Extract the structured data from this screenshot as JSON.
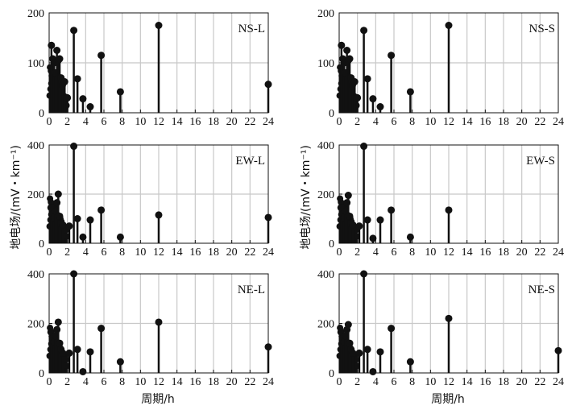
{
  "chart_data": {
    "type": "scatter",
    "style": "stem",
    "xlabel": "周期/h",
    "ylabel": "地电场/(mV・km⁻¹)",
    "xticks": [
      0,
      2,
      4,
      6,
      8,
      10,
      12,
      14,
      16,
      18,
      20,
      22,
      24
    ],
    "xlim": [
      0,
      24
    ],
    "grid": true,
    "panels": [
      {
        "title": "NS-L",
        "ylim": [
          0,
          200
        ],
        "yticks": [
          0,
          100,
          200
        ],
        "points": [
          [
            0.25,
            135
          ],
          [
            0.4,
            108
          ],
          [
            0.55,
            100
          ],
          [
            0.7,
            80
          ],
          [
            0.85,
            125
          ],
          [
            1.0,
            105
          ],
          [
            1.15,
            108
          ],
          [
            1.3,
            70
          ],
          [
            1.45,
            55
          ],
          [
            1.7,
            62
          ],
          [
            2.0,
            30
          ],
          [
            2.7,
            165
          ],
          [
            3.1,
            68
          ],
          [
            3.7,
            28
          ],
          [
            4.5,
            12
          ],
          [
            5.7,
            115
          ],
          [
            7.8,
            42
          ],
          [
            12.0,
            175
          ],
          [
            24.0,
            57
          ]
        ]
      },
      {
        "title": "NS-S",
        "ylim": [
          0,
          200
        ],
        "yticks": [
          0,
          100,
          200
        ],
        "points": [
          [
            0.25,
            135
          ],
          [
            0.4,
            108
          ],
          [
            0.55,
            100
          ],
          [
            0.7,
            80
          ],
          [
            0.85,
            125
          ],
          [
            1.0,
            105
          ],
          [
            1.15,
            108
          ],
          [
            1.3,
            70
          ],
          [
            1.45,
            55
          ],
          [
            1.7,
            62
          ],
          [
            2.0,
            30
          ],
          [
            2.7,
            165
          ],
          [
            3.1,
            68
          ],
          [
            3.7,
            28
          ],
          [
            4.5,
            12
          ],
          [
            5.7,
            115
          ],
          [
            7.8,
            42
          ],
          [
            12.0,
            175
          ]
        ]
      },
      {
        "title": "EW-L",
        "ylim": [
          0,
          400
        ],
        "yticks": [
          0,
          200,
          400
        ],
        "points": [
          [
            0.2,
            145
          ],
          [
            0.4,
            120
          ],
          [
            0.55,
            105
          ],
          [
            0.7,
            130
          ],
          [
            0.85,
            165
          ],
          [
            1.0,
            200
          ],
          [
            1.15,
            110
          ],
          [
            1.3,
            80
          ],
          [
            1.5,
            75
          ],
          [
            2.2,
            70
          ],
          [
            2.7,
            395
          ],
          [
            3.1,
            100
          ],
          [
            3.7,
            25
          ],
          [
            4.5,
            95
          ],
          [
            5.7,
            135
          ],
          [
            7.8,
            25
          ],
          [
            12.0,
            115
          ],
          [
            24.0,
            105
          ]
        ]
      },
      {
        "title": "EW-S",
        "ylim": [
          0,
          400
        ],
        "yticks": [
          0,
          200,
          400
        ],
        "points": [
          [
            0.2,
            145
          ],
          [
            0.4,
            120
          ],
          [
            0.55,
            105
          ],
          [
            0.7,
            130
          ],
          [
            0.85,
            165
          ],
          [
            1.0,
            195
          ],
          [
            1.15,
            110
          ],
          [
            1.3,
            80
          ],
          [
            1.5,
            75
          ],
          [
            2.2,
            70
          ],
          [
            2.7,
            395
          ],
          [
            3.1,
            95
          ],
          [
            3.7,
            20
          ],
          [
            4.5,
            95
          ],
          [
            5.7,
            135
          ],
          [
            7.8,
            25
          ],
          [
            12.0,
            135
          ]
        ]
      },
      {
        "title": "NE-L",
        "ylim": [
          0,
          400
        ],
        "yticks": [
          0,
          200,
          400
        ],
        "points": [
          [
            0.2,
            165
          ],
          [
            0.4,
            140
          ],
          [
            0.55,
            125
          ],
          [
            0.7,
            150
          ],
          [
            0.85,
            175
          ],
          [
            1.0,
            205
          ],
          [
            1.15,
            120
          ],
          [
            1.3,
            95
          ],
          [
            1.5,
            80
          ],
          [
            2.2,
            80
          ],
          [
            2.7,
            400
          ],
          [
            3.1,
            95
          ],
          [
            3.7,
            5
          ],
          [
            4.5,
            85
          ],
          [
            5.7,
            180
          ],
          [
            7.8,
            45
          ],
          [
            12.0,
            205
          ],
          [
            24.0,
            105
          ]
        ]
      },
      {
        "title": "NE-S",
        "ylim": [
          0,
          400
        ],
        "yticks": [
          0,
          200,
          400
        ],
        "points": [
          [
            0.2,
            165
          ],
          [
            0.4,
            140
          ],
          [
            0.55,
            125
          ],
          [
            0.7,
            150
          ],
          [
            0.85,
            175
          ],
          [
            1.0,
            195
          ],
          [
            1.15,
            120
          ],
          [
            1.3,
            95
          ],
          [
            1.5,
            80
          ],
          [
            2.2,
            80
          ],
          [
            2.7,
            400
          ],
          [
            3.1,
            95
          ],
          [
            3.7,
            5
          ],
          [
            4.5,
            85
          ],
          [
            5.7,
            180
          ],
          [
            7.8,
            45
          ],
          [
            12.0,
            220
          ],
          [
            24.0,
            90
          ]
        ]
      }
    ]
  }
}
